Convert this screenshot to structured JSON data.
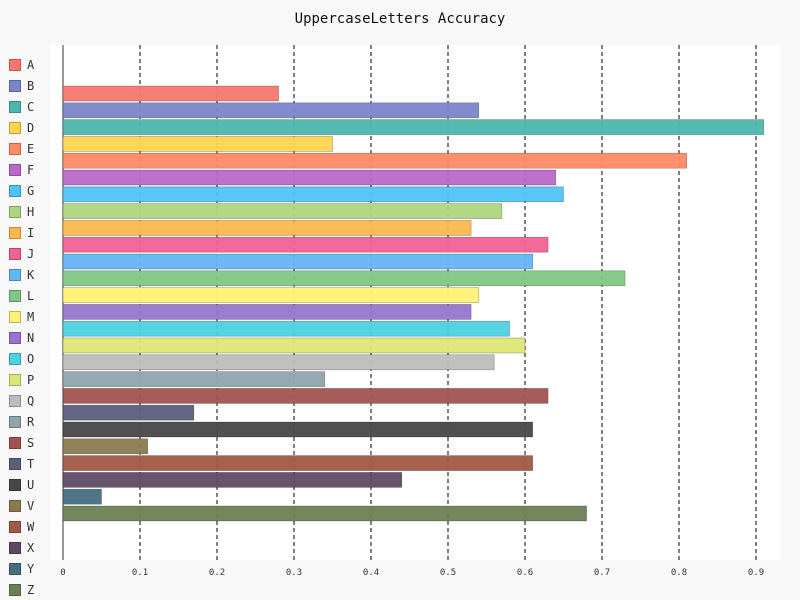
{
  "chart_data": {
    "type": "bar",
    "orientation": "horizontal",
    "title": "UppercaseLetters Accuracy",
    "xlabel": "",
    "ylabel": "",
    "xlim": [
      0,
      0.915
    ],
    "x_ticks": [
      "0",
      "0.1",
      "0.2",
      "0.3",
      "0.4",
      "0.5",
      "0.6",
      "0.7",
      "0.8",
      "0.9"
    ],
    "grid": "vertical dashed",
    "legend_position": "left",
    "categories": [
      "A",
      "B",
      "C",
      "D",
      "E",
      "F",
      "G",
      "H",
      "I",
      "J",
      "K",
      "L",
      "M",
      "N",
      "O",
      "P",
      "Q",
      "R",
      "S",
      "T",
      "U",
      "V",
      "W",
      "X",
      "Y",
      "Z"
    ],
    "values": [
      0.28,
      0.54,
      0.91,
      0.35,
      0.81,
      0.64,
      0.65,
      0.57,
      0.53,
      0.63,
      0.61,
      0.73,
      0.54,
      0.53,
      0.58,
      0.6,
      0.56,
      0.34,
      0.63,
      0.17,
      0.61,
      0.11,
      0.61,
      0.44,
      0.05,
      0.68
    ],
    "colors": [
      "#f8766d",
      "#7986cb",
      "#4db6ac",
      "#ffd54f",
      "#ff8a65",
      "#ba68c8",
      "#4fc3f7",
      "#aed581",
      "#ffb74d",
      "#f06292",
      "#64b5f6",
      "#81c784",
      "#fff176",
      "#9575cd",
      "#4dd0e1",
      "#dce775",
      "#bdbdbd",
      "#90a4ae",
      "#a1534f",
      "#5c5f7a",
      "#474747",
      "#8b7a4e",
      "#a15a46",
      "#5f4a64",
      "#476e80",
      "#6b7f55"
    ]
  }
}
